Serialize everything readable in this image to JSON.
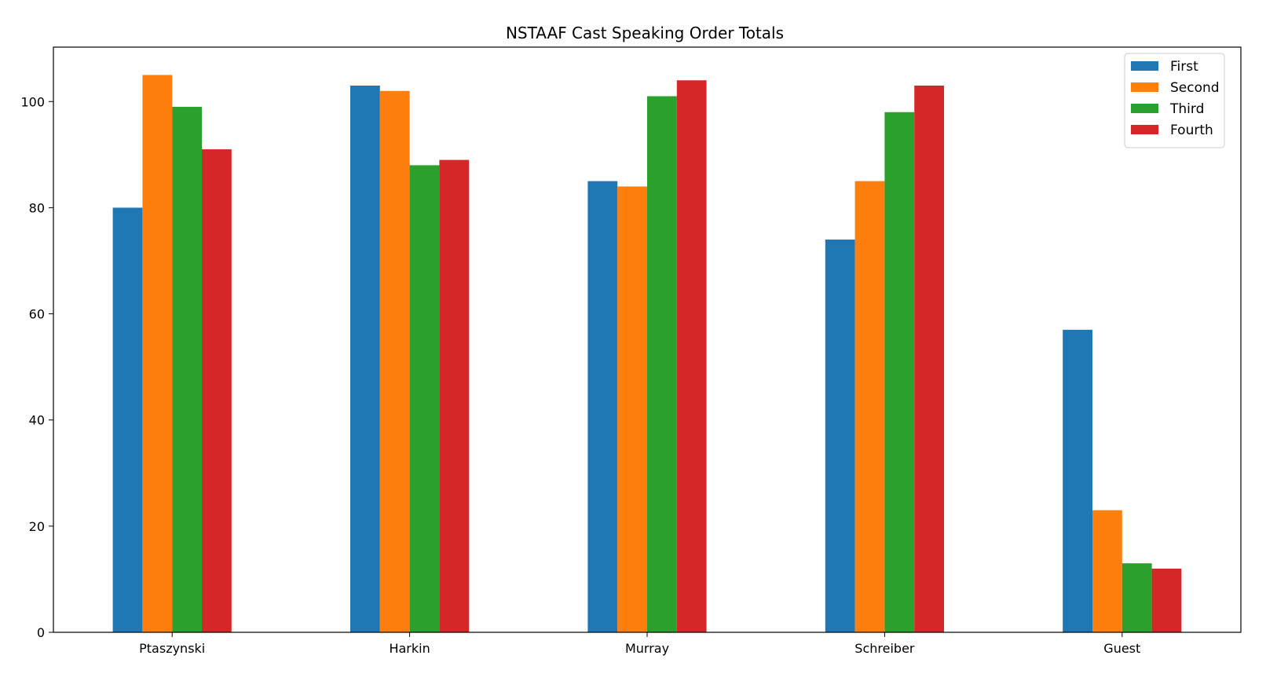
{
  "chart_data": {
    "type": "bar",
    "title": "NSTAAF Cast Speaking Order Totals",
    "xlabel": "",
    "ylabel": "",
    "categories": [
      "Ptaszynski",
      "Harkin",
      "Murray",
      "Schreiber",
      "Guest"
    ],
    "series": [
      {
        "name": "First",
        "color": "#1f77b4",
        "values": [
          80,
          103,
          85,
          74,
          57
        ]
      },
      {
        "name": "Second",
        "color": "#ff7f0e",
        "values": [
          105,
          102,
          84,
          85,
          23
        ]
      },
      {
        "name": "Third",
        "color": "#2ca02c",
        "values": [
          99,
          88,
          101,
          98,
          13
        ]
      },
      {
        "name": "Fourth",
        "color": "#d62728",
        "values": [
          91,
          89,
          104,
          103,
          12
        ]
      }
    ],
    "ylim": [
      0,
      110.25
    ],
    "yticks": [
      0,
      20,
      40,
      60,
      80,
      100
    ],
    "grid": false,
    "legend_position": "top-right"
  }
}
